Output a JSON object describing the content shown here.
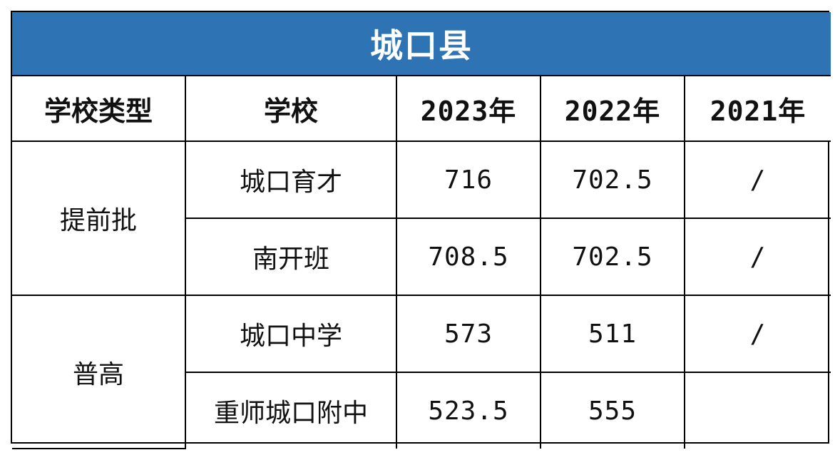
{
  "table": {
    "title": "城口县",
    "headers": [
      "学校类型",
      "学校",
      "2023年",
      "2022年",
      "2021年"
    ],
    "groups": [
      {
        "type": "提前批",
        "rows": [
          {
            "school": "城口育才",
            "y2023": "716",
            "y2022": "702.5",
            "y2021": "/"
          },
          {
            "school": "南开班",
            "y2023": "708.5",
            "y2022": "702.5",
            "y2021": "/"
          }
        ]
      },
      {
        "type": "普高",
        "rows": [
          {
            "school": "城口中学",
            "y2023": "573",
            "y2022": "511",
            "y2021": "/"
          },
          {
            "school": "重师城口附中",
            "y2023": "523.5",
            "y2022": "555",
            "y2021": ""
          }
        ]
      }
    ]
  },
  "colors": {
    "title_background": "#2e74b5",
    "title_text": "#ffffff",
    "border": "#000000"
  }
}
